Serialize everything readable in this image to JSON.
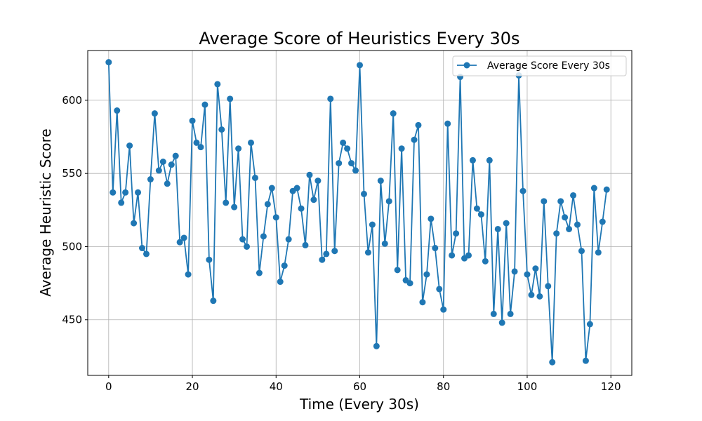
{
  "chart_data": {
    "type": "line",
    "title": "Average Score of Heuristics Every 30s",
    "xlabel": "Time (Every 30s)",
    "ylabel": "Average Heuristic Score",
    "xlim": [
      -5,
      125
    ],
    "ylim": [
      412,
      634
    ],
    "xticks": [
      0,
      20,
      40,
      60,
      80,
      100,
      120
    ],
    "yticks": [
      450,
      500,
      550,
      600
    ],
    "grid": true,
    "legend_position": "top-right",
    "color": "#1f77b4",
    "series": [
      {
        "name": "Average Score Every 30s",
        "x": [
          0,
          1,
          2,
          3,
          4,
          5,
          6,
          7,
          8,
          9,
          10,
          11,
          12,
          13,
          14,
          15,
          16,
          17,
          18,
          19,
          20,
          21,
          22,
          23,
          24,
          25,
          26,
          27,
          28,
          29,
          30,
          31,
          32,
          33,
          34,
          35,
          36,
          37,
          38,
          39,
          40,
          41,
          42,
          43,
          44,
          45,
          46,
          47,
          48,
          49,
          50,
          51,
          52,
          53,
          54,
          55,
          56,
          57,
          58,
          59,
          60,
          61,
          62,
          63,
          64,
          65,
          66,
          67,
          68,
          69,
          70,
          71,
          72,
          73,
          74,
          75,
          76,
          77,
          78,
          79,
          80,
          81,
          82,
          83,
          84,
          85,
          86,
          87,
          88,
          89,
          90,
          91,
          92,
          93,
          94,
          95,
          96,
          97,
          98,
          99,
          100,
          101,
          102,
          103,
          104,
          105,
          106,
          107,
          108,
          109,
          110,
          111,
          112,
          113,
          114,
          115,
          116,
          117,
          118,
          119
        ],
        "values": [
          626,
          537,
          593,
          530,
          537,
          569,
          516,
          537,
          499,
          495,
          546,
          591,
          552,
          558,
          543,
          556,
          562,
          503,
          506,
          481,
          586,
          571,
          568,
          597,
          491,
          463,
          611,
          580,
          530,
          601,
          527,
          567,
          505,
          500,
          571,
          547,
          482,
          507,
          529,
          540,
          520,
          476,
          487,
          505,
          538,
          540,
          526,
          501,
          549,
          532,
          545,
          491,
          495,
          601,
          497,
          557,
          571,
          567,
          557,
          552,
          624,
          536,
          496,
          515,
          432,
          545,
          502,
          531,
          591,
          484,
          567,
          477,
          475,
          573,
          583,
          462,
          481,
          519,
          499,
          471,
          457,
          584,
          494,
          509,
          616,
          492,
          494,
          559,
          526,
          522,
          490,
          559,
          454,
          512,
          448,
          516,
          454,
          483,
          617,
          538,
          481,
          467,
          485,
          466,
          531,
          473,
          421,
          509,
          531,
          520,
          512,
          535,
          515,
          497,
          422,
          447,
          540,
          496,
          517,
          539
        ]
      }
    ]
  }
}
